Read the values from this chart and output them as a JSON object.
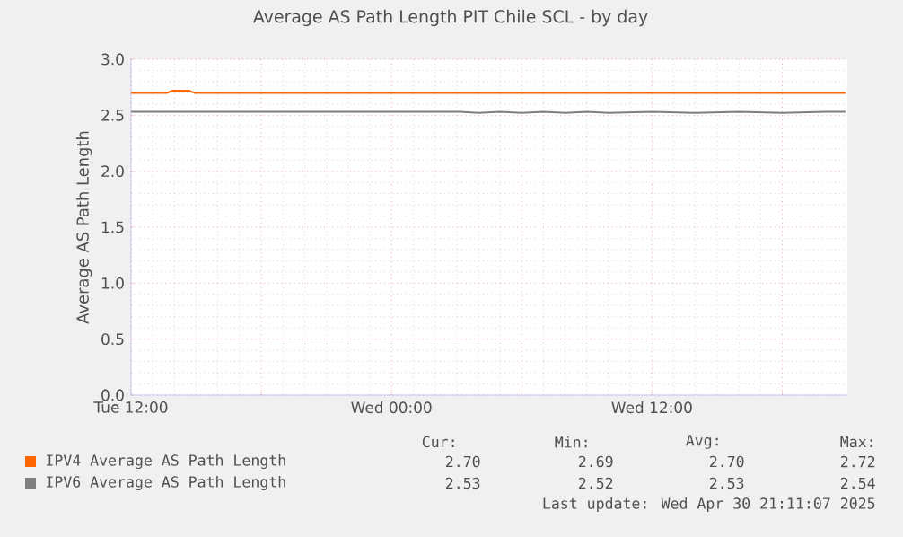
{
  "chart_data": {
    "type": "line",
    "title": "Average AS Path Length PIT Chile SCL - by day",
    "ylabel": "Average AS Path Length",
    "xlim": [
      "2025-04-29T12:00",
      "2025-04-30T21:00"
    ],
    "ylim": [
      0,
      3
    ],
    "xticks": [
      {
        "value": "2025-04-29T12:00",
        "label": "Tue 12:00"
      },
      {
        "value": "2025-04-29T18:00",
        "label": null
      },
      {
        "value": "2025-04-30T00:00",
        "label": "Wed 00:00"
      },
      {
        "value": "2025-04-30T06:00",
        "label": null
      },
      {
        "value": "2025-04-30T12:00",
        "label": "Wed 12:00"
      },
      {
        "value": "2025-04-30T18:00",
        "label": null
      }
    ],
    "yticks": [
      {
        "value": 0,
        "label": "0.0"
      },
      {
        "value": 0.5,
        "label": "0.5"
      },
      {
        "value": 1,
        "label": "1.0"
      },
      {
        "value": 1.5,
        "label": "1.5"
      },
      {
        "value": 2,
        "label": "2.0"
      },
      {
        "value": 2.5,
        "label": "2.5"
      },
      {
        "value": 3,
        "label": "3.0"
      }
    ],
    "grid": true,
    "legend": "bottom",
    "series": [
      {
        "name": "IPV4 Average AS Path Length",
        "color": "#ff6600",
        "x": [
          "2025-04-29T12:00",
          "2025-04-29T13:40",
          "2025-04-29T13:55",
          "2025-04-29T14:40",
          "2025-04-29T14:55",
          "2025-04-30T20:55"
        ],
        "values": [
          2.7,
          2.7,
          2.72,
          2.72,
          2.7,
          2.7
        ]
      },
      {
        "name": "IPV6 Average AS Path Length",
        "color": "#7f7f7f",
        "x": [
          "2025-04-29T12:00",
          "2025-04-30T03:10",
          "2025-04-30T04:00",
          "2025-04-30T05:00",
          "2025-04-30T06:00",
          "2025-04-30T07:00",
          "2025-04-30T08:00",
          "2025-04-30T09:00",
          "2025-04-30T10:00",
          "2025-04-30T12:00",
          "2025-04-30T14:00",
          "2025-04-30T16:00",
          "2025-04-30T18:00",
          "2025-04-30T20:00",
          "2025-04-30T20:55"
        ],
        "values": [
          2.53,
          2.53,
          2.52,
          2.53,
          2.52,
          2.53,
          2.52,
          2.53,
          2.52,
          2.53,
          2.52,
          2.53,
          2.52,
          2.53,
          2.53
        ]
      }
    ],
    "annotations": [
      "Cur:",
      "Min:",
      "Avg:",
      "Max:",
      "2.70",
      "2.69",
      "2.70",
      "2.72",
      "2.53",
      "2.52",
      "2.53",
      "2.54",
      "Last update: Wed Apr 30 21:11:07 2025"
    ]
  }
}
